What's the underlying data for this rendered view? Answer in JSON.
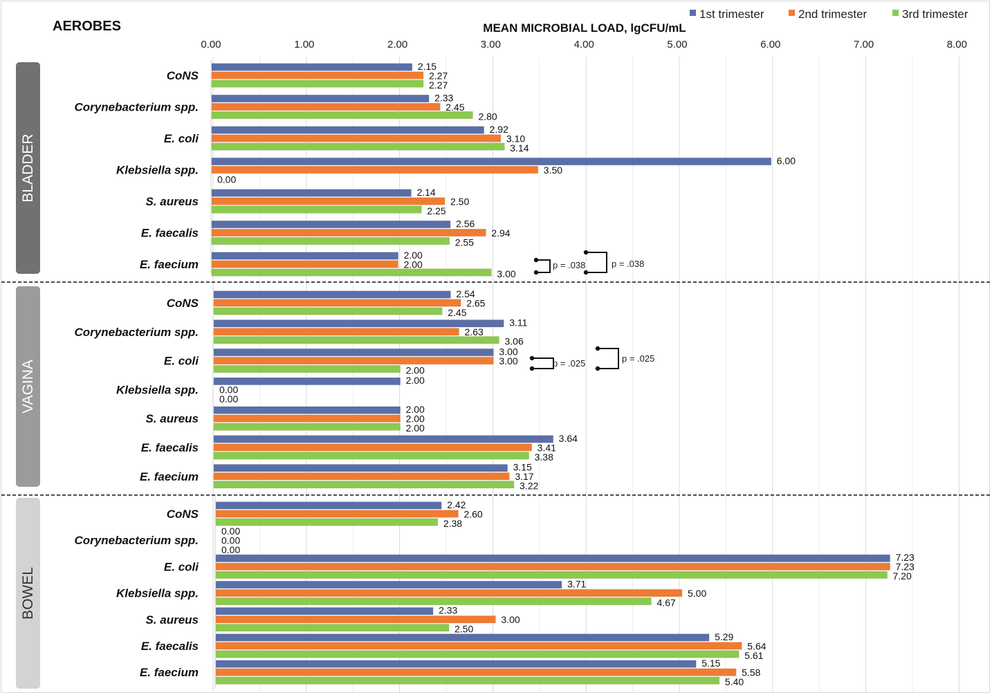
{
  "chart_data": {
    "type": "bar",
    "orientation": "horizontal",
    "title": "AEROBES",
    "xlabel": "MEAN MICROBIAL LOAD, lgCFU/mL",
    "ylabel": "",
    "xlim": [
      0,
      8
    ],
    "x_ticks": [
      "0.00",
      "1.00",
      "2.00",
      "3.00",
      "4.00",
      "5.00",
      "6.00",
      "7.00",
      "8.00"
    ],
    "grid": true,
    "legend_position": "top-right",
    "series_names": [
      "1st trimester",
      "2nd trimester",
      "3rd trimester"
    ],
    "series_colors": [
      "#5a6fa8",
      "#ef7c32",
      "#8cc94f"
    ],
    "categories": [
      "CoNS",
      "Corynebacterium spp.",
      "E. coli",
      "Klebsiella spp.",
      "S. aureus",
      "E. faecalis",
      "E. faecium"
    ],
    "panels": [
      {
        "name": "BLADDER",
        "color": "#717171",
        "values": [
          [
            2.15,
            2.27,
            2.27
          ],
          [
            2.33,
            2.45,
            2.8
          ],
          [
            2.92,
            3.1,
            3.14
          ],
          [
            6.0,
            3.5,
            0.0
          ],
          [
            2.14,
            2.5,
            2.25
          ],
          [
            2.56,
            2.94,
            2.55
          ],
          [
            2.0,
            2.0,
            3.0
          ]
        ],
        "labels": [
          [
            "2.15",
            "2.27",
            "2.27"
          ],
          [
            "2.33",
            "2.45",
            "2.80"
          ],
          [
            "2.92",
            "3.10",
            "3.14"
          ],
          [
            "6.00",
            "3.50",
            "0.00"
          ],
          [
            "2.14",
            "2.50",
            "2.25"
          ],
          [
            "2.56",
            "2.94",
            "2.55"
          ],
          [
            "2.00",
            "2.00",
            "3.00"
          ]
        ],
        "annotations": [
          {
            "category": "E. faecium",
            "compare": [
              "2nd trimester",
              "3rd trimester"
            ],
            "text": "p = .038"
          },
          {
            "category": "E. faecium",
            "compare": [
              "1st trimester",
              "3rd trimester"
            ],
            "text": "p = .038"
          }
        ]
      },
      {
        "name": "VAGINA",
        "color": "#9b9b9b",
        "values": [
          [
            2.54,
            2.65,
            2.45
          ],
          [
            3.11,
            2.63,
            3.06
          ],
          [
            3.0,
            3.0,
            2.0
          ],
          [
            2.0,
            0.0,
            0.0
          ],
          [
            2.0,
            2.0,
            2.0
          ],
          [
            3.64,
            3.41,
            3.38
          ],
          [
            3.15,
            3.17,
            3.22
          ]
        ],
        "labels": [
          [
            "2.54",
            "2.65",
            "2.45"
          ],
          [
            "3.11",
            "2.63",
            "3.06"
          ],
          [
            "3.00",
            "3.00",
            "2.00"
          ],
          [
            "2.00",
            "0.00",
            "0.00"
          ],
          [
            "2.00",
            "2.00",
            "2.00"
          ],
          [
            "3.64",
            "3.41",
            "3.38"
          ],
          [
            "3.15",
            "3.17",
            "3.22"
          ]
        ],
        "annotations": [
          {
            "category": "E. coli",
            "compare": [
              "2nd trimester",
              "3rd trimester"
            ],
            "text": "p = .025"
          },
          {
            "category": "E. coli",
            "compare": [
              "1st trimester",
              "3rd trimester"
            ],
            "text": "p = .025"
          }
        ]
      },
      {
        "name": "BOWEL",
        "color": "#d3d3d3",
        "values": [
          [
            2.42,
            2.6,
            2.38
          ],
          [
            0.0,
            0.0,
            0.0
          ],
          [
            7.23,
            7.23,
            7.2
          ],
          [
            3.71,
            5.0,
            4.67
          ],
          [
            2.33,
            3.0,
            2.5
          ],
          [
            5.29,
            5.64,
            5.61
          ],
          [
            5.15,
            5.58,
            5.4
          ]
        ],
        "labels": [
          [
            "2.42",
            "2.60",
            "2.38"
          ],
          [
            "0.00",
            "0.00",
            "0.00"
          ],
          [
            "7.23",
            "7.23",
            "7.20"
          ],
          [
            "3.71",
            "5.00",
            "4.67"
          ],
          [
            "2.33",
            "3.00",
            "2.50"
          ],
          [
            "5.29",
            "5.64",
            "5.61"
          ],
          [
            "5.15",
            "5.58",
            "5.40"
          ]
        ],
        "annotations": []
      }
    ]
  }
}
